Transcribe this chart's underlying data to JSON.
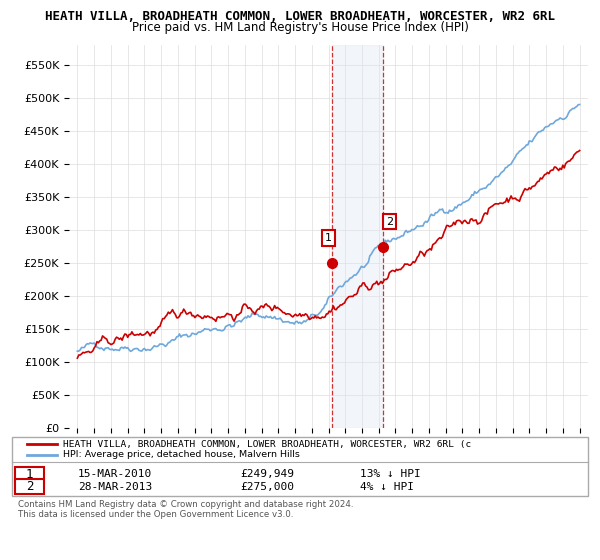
{
  "title": "HEATH VILLA, BROADHEATH COMMON, LOWER BROADHEATH, WORCESTER, WR2 6RL",
  "subtitle": "Price paid vs. HM Land Registry's House Price Index (HPI)",
  "legend_line1": "HEATH VILLA, BROADHEATH COMMON, LOWER BROADHEATH, WORCESTER, WR2 6RL (c",
  "legend_line2": "HPI: Average price, detached house, Malvern Hills",
  "footnote": "Contains HM Land Registry data © Crown copyright and database right 2024.\nThis data is licensed under the Open Government Licence v3.0.",
  "point1_date": "15-MAR-2010",
  "point1_price": "£249,949",
  "point1_hpi": "13% ↓ HPI",
  "point2_date": "28-MAR-2013",
  "point2_price": "£275,000",
  "point2_hpi": "4% ↓ HPI",
  "hpi_color": "#6fa8dc",
  "price_color": "#cc0000",
  "shading_color": "#dce6f1",
  "ylim_min": 0,
  "ylim_max": 580000,
  "yticks": [
    0,
    50000,
    100000,
    150000,
    200000,
    250000,
    300000,
    350000,
    400000,
    450000,
    500000,
    550000
  ],
  "ytick_labels": [
    "£0",
    "£50K",
    "£100K",
    "£150K",
    "£200K",
    "£250K",
    "£300K",
    "£350K",
    "£400K",
    "£450K",
    "£500K",
    "£550K"
  ],
  "xlim_min": 1994.5,
  "xlim_max": 2025.5,
  "xticks": [
    1995,
    1996,
    1997,
    1998,
    1999,
    2000,
    2001,
    2002,
    2003,
    2004,
    2005,
    2006,
    2007,
    2008,
    2009,
    2010,
    2011,
    2012,
    2013,
    2014,
    2015,
    2016,
    2017,
    2018,
    2019,
    2020,
    2021,
    2022,
    2023,
    2024,
    2025
  ],
  "p1_x": 2010.21,
  "p1_y": 249949,
  "p2_x": 2013.24,
  "p2_y": 275000
}
